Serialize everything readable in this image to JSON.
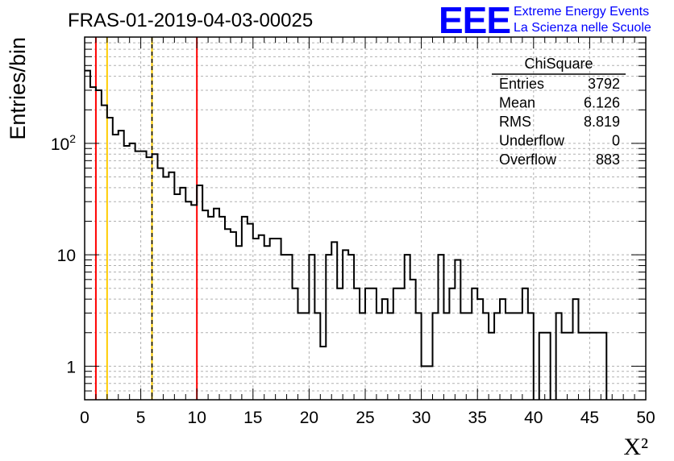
{
  "chart_data": {
    "type": "histogram",
    "title": "FRAS-01-2019-04-03-00025",
    "xlabel": "X²",
    "ylabel": "Entries/bin",
    "xlim": [
      0,
      50
    ],
    "ylim": [
      0.5,
      900
    ],
    "yscale": "log",
    "grid": true,
    "bin_width": 0.5,
    "x_ticks": [
      "0",
      "5",
      "10",
      "15",
      "20",
      "25",
      "30",
      "35",
      "40",
      "45",
      "50"
    ],
    "y_ticks": [
      {
        "value": 1,
        "label": "1"
      },
      {
        "value": 10,
        "label": "10"
      },
      {
        "value": 100,
        "label": "10^2"
      }
    ],
    "bin_counts": [
      450,
      320,
      300,
      220,
      170,
      120,
      130,
      95,
      100,
      85,
      85,
      75,
      80,
      60,
      50,
      55,
      35,
      40,
      30,
      28,
      42,
      25,
      22,
      26,
      22,
      17,
      16,
      12,
      22,
      19,
      14,
      15,
      12,
      14,
      14,
      10,
      10,
      5,
      3,
      3,
      10,
      3,
      1.5,
      10,
      13,
      5,
      11,
      10,
      5,
      3,
      5,
      5,
      3,
      4,
      3,
      5,
      5,
      10,
      6,
      3,
      1,
      1,
      3,
      10,
      3,
      5,
      9,
      3,
      3,
      5,
      4,
      3,
      2,
      3,
      4,
      3,
      3,
      3,
      5,
      3,
      0,
      2,
      2,
      0,
      3,
      2,
      2,
      4,
      2,
      2,
      2,
      2,
      2,
      0,
      0
    ],
    "vertical_lines": [
      {
        "x": 1,
        "color": "#ff0000",
        "style": "solid"
      },
      {
        "x": 2,
        "color": "#ffcc00",
        "style": "solid"
      },
      {
        "x": 6,
        "color": "#ffcc00",
        "style": "solid"
      },
      {
        "x": 6,
        "color": "#000000",
        "style": "dashed"
      },
      {
        "x": 10,
        "color": "#ff0000",
        "style": "solid"
      }
    ],
    "stats_box": {
      "title": "ChiSquare",
      "rows": [
        {
          "label": "Entries",
          "value": "3792"
        },
        {
          "label": "Mean",
          "value": "6.126"
        },
        {
          "label": "RMS",
          "value": "8.819"
        },
        {
          "label": "Underflow",
          "value": "0"
        },
        {
          "label": "Overflow",
          "value": "883"
        }
      ]
    }
  },
  "logo": {
    "mark": "EEE",
    "line1": "Extreme Energy Events",
    "line2": "La Scienza nelle Scuole"
  },
  "colors": {
    "histogram": "#000000",
    "grid": "#b0b0b0",
    "logo": "#0000ff"
  }
}
